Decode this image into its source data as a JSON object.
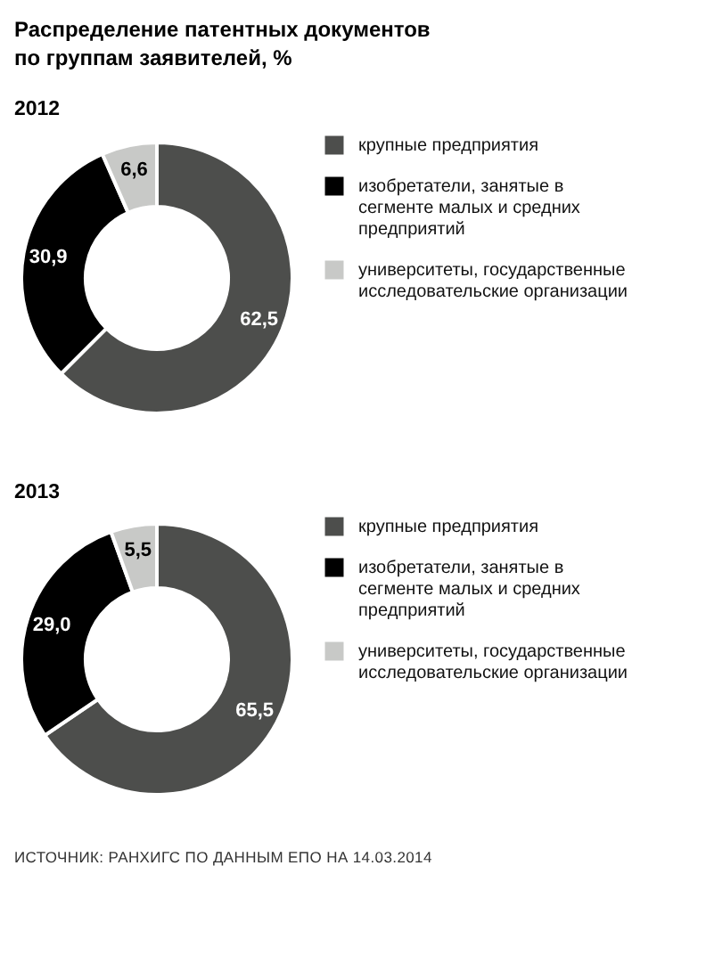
{
  "chart_data": [
    {
      "type": "donut",
      "title": "Распределение патентных документов по группам заявителей, %",
      "subtitle": "2012",
      "categories": [
        "крупные предприятия",
        "изобретатели, занятые в сегменте малых и средних предприятий",
        "университеты, государственные исследовательские организации"
      ],
      "values": [
        62.5,
        30.9,
        6.6
      ],
      "value_labels": [
        "62,5",
        "30,9",
        "6,6"
      ],
      "colors": [
        "#4d4e4c",
        "#000000",
        "#c8c9c7"
      ],
      "legend": "right"
    },
    {
      "type": "donut",
      "subtitle": "2013",
      "categories": [
        "крупные предприятия",
        "изобретатели, занятые в сегменте малых и средних предприятий",
        "университеты, государственные исследовательские организации"
      ],
      "values": [
        65.5,
        29.0,
        5.5
      ],
      "value_labels": [
        "65,5",
        "29,0",
        "5,5"
      ],
      "colors": [
        "#4d4e4c",
        "#000000",
        "#c8c9c7"
      ],
      "legend": "right",
      "annotations": [
        "ИСТОЧНИК: РАНХИГС ПО ДАННЫМ ЕПО НА 14.03.2014"
      ]
    }
  ]
}
